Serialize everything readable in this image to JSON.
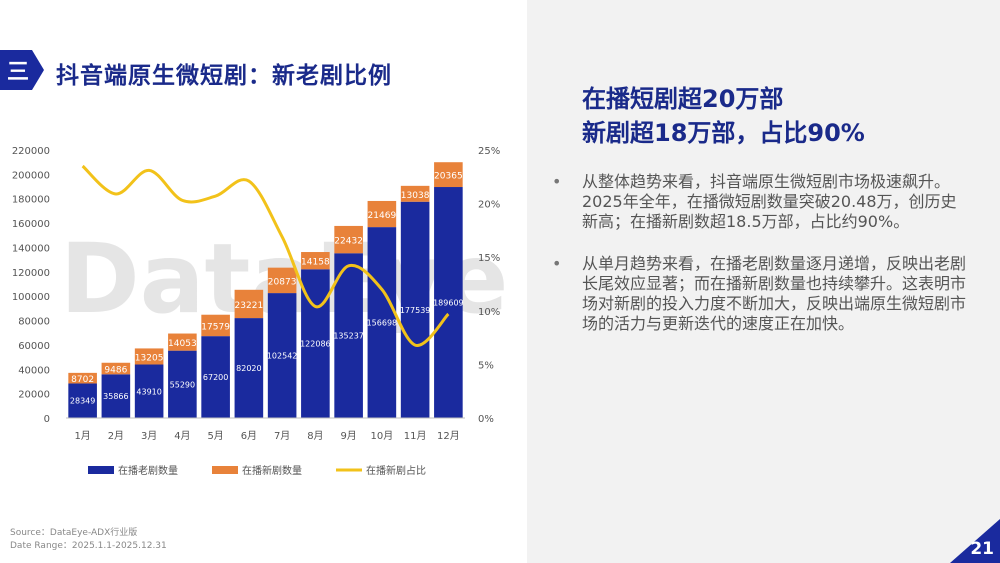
{
  "header": {
    "badge_char": "三",
    "title": "抖音端原生微短剧：新老剧比例"
  },
  "headline": {
    "line1": "在播短剧超20万部",
    "line2": "新剧超18万部，占比90%"
  },
  "bullets": [
    {
      "marker": "•",
      "text": "从整体趋势来看，抖音端原生微短剧市场极速飙升。2025年全年，在播微短剧数量突破20.48万，创历史新高；在播新剧数超18.5万部，占比约90%。"
    },
    {
      "marker": "•",
      "text": "从单月趋势来看，在播老剧数量逐月递增，反映出老剧长尾效应显著；而在播新剧数量也持续攀升。这表明市场对新剧的投入力度不断加大，反映出端原生微短剧市场的活力与更新迭代的速度正在加快。"
    }
  ],
  "watermark": "DataEye",
  "source": {
    "line1": "Source：DataEye-ADX行业版",
    "line2": "Date Range：2025.1.1-2025.12.31"
  },
  "page_number": "21",
  "colors": {
    "old": "#1a2a9e",
    "new": "#e8823a",
    "ratio": "#f2c21a",
    "title": "#1a2a8a"
  },
  "chart_data": {
    "type": "bar",
    "stacked": true,
    "categories": [
      "1月",
      "2月",
      "3月",
      "4月",
      "5月",
      "6月",
      "7月",
      "8月",
      "9月",
      "10月",
      "11月",
      "12月"
    ],
    "series": [
      {
        "name": "在播老剧数量",
        "type": "bar",
        "axis": "left",
        "values": [
          28349,
          35866,
          43910,
          55290,
          67200,
          82020,
          102542,
          122086,
          135237,
          156698,
          177539,
          189609
        ]
      },
      {
        "name": "在播新剧数量",
        "type": "bar",
        "axis": "left",
        "values": [
          8702,
          9486,
          13205,
          14053,
          17579,
          23221,
          20873,
          14158,
          22432,
          21469,
          13038,
          20365
        ]
      },
      {
        "name": "在播新剧占比",
        "type": "line",
        "axis": "right",
        "values": [
          23.5,
          20.9,
          23.1,
          20.3,
          20.7,
          22.1,
          16.9,
          10.4,
          14.2,
          12.0,
          6.8,
          9.7
        ]
      }
    ],
    "left_axis": {
      "ticks": [
        "0",
        "20000",
        "40000",
        "60000",
        "80000",
        "100000",
        "120000",
        "140000",
        "160000",
        "180000",
        "200000",
        "220000"
      ],
      "min": 0,
      "max": 220000
    },
    "right_axis": {
      "ticks": [
        "0%",
        "5%",
        "10%",
        "15%",
        "20%",
        "25%"
      ],
      "min": 0,
      "max": 25
    },
    "legend_position": "bottom",
    "grid": false
  }
}
